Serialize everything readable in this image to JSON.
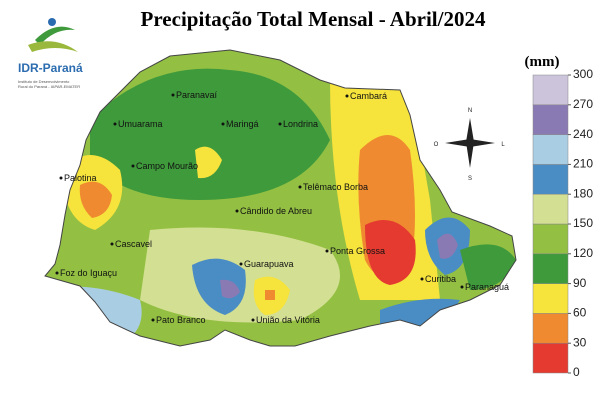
{
  "title": "Precipitação Total Mensal - Abril/2024",
  "logo": {
    "name": "IDR-Paraná",
    "subtitle": [
      "Instituto de Desenvolvimento",
      "Rural do Paraná - IAPAR-EMATER"
    ]
  },
  "cities": [
    "Paranavaí",
    "Cambará",
    "Umuarama",
    "Maringá",
    "Londrina",
    "Campo Mourão",
    "Palotina",
    "Telêmaco Borba",
    "Cândido de Abreu",
    "Cascavel",
    "Ponta Grossa",
    "Guarapuava",
    "Foz do Iguaçu",
    "Curitiba",
    "Paranaguá",
    "Pato Branco",
    "União da Vitória"
  ],
  "legend": {
    "unit": "(mm)",
    "ticks": [
      0,
      30,
      60,
      90,
      120,
      150,
      180,
      210,
      240,
      270,
      300
    ],
    "colors": [
      "#e43a30",
      "#f08a30",
      "#f6e33c",
      "#3f9a3c",
      "#93c043",
      "#d3df92",
      "#4a8cc4",
      "#a9cde3",
      "#8a7ab4",
      "#cbc4db"
    ]
  }
}
